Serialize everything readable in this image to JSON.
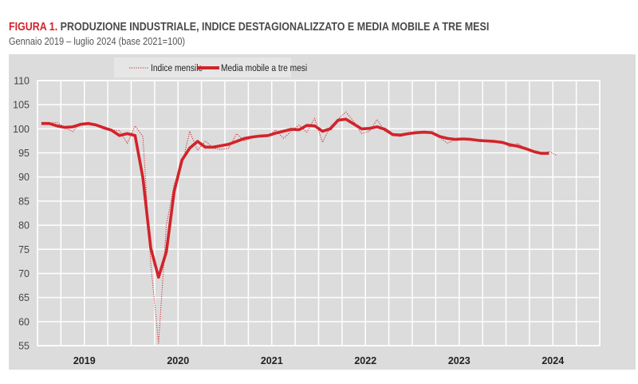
{
  "title_prefix": "FIGURA 1.",
  "title": "PRODUZIONE INDUSTRIALE, INDICE DESTAGIONALIZZATO E MEDIA MOBILE A TRE MESI",
  "subtitle": "Gennaio 2019 – luglio 2024 (base 2021=100)",
  "colors": {
    "series": "#d2232a",
    "panel": "#dcdcdc",
    "legend_bg": "#e6e6e6",
    "grid": "#ffffff"
  },
  "chart_data": {
    "type": "line",
    "title": "PRODUZIONE INDUSTRIALE, INDICE DESTAGIONALIZZATO E MEDIA MOBILE A TRE MESI",
    "subtitle": "Gennaio 2019 – luglio 2024 (base 2021=100)",
    "x_start": "2019-01",
    "x_frequency": "monthly",
    "x_tick_labels": [
      "2019",
      "2020",
      "2021",
      "2022",
      "2023",
      "2024"
    ],
    "ylim": [
      55,
      110
    ],
    "y_ticks": [
      55,
      60,
      65,
      70,
      75,
      80,
      85,
      90,
      95,
      100,
      105,
      110
    ],
    "grid": true,
    "legend_placement": "top-center",
    "series": [
      {
        "name": "Indice mensile",
        "style": "dotted",
        "values": [
          101.0,
          101.2,
          101.3,
          100.3,
          99.4,
          101.2,
          101.3,
          101.0,
          100.5,
          99.8,
          99.6,
          97.0,
          100.6,
          98.4,
          72.0,
          55.5,
          80.0,
          88.5,
          92.5,
          99.5,
          95.5,
          97.5,
          96.0,
          95.7,
          96.0,
          99.0,
          97.5,
          98.2,
          98.5,
          98.4,
          99.8,
          98.0,
          99.5,
          100.8,
          99.3,
          102.2,
          97.2,
          100.5,
          102.0,
          103.5,
          101.5,
          99.0,
          99.5,
          101.9,
          99.5,
          98.6,
          98.4,
          99.0,
          99.3,
          99.4,
          99.0,
          98.2,
          97.0,
          97.8,
          98.0,
          97.8,
          97.7,
          97.5,
          97.4,
          97.3,
          96.2,
          97.0,
          95.8,
          95.3,
          94.8,
          95.3,
          94.5
        ]
      },
      {
        "name": "Media mobile a tre mesi",
        "style": "solid",
        "values": [
          101.1,
          101.1,
          100.6,
          100.3,
          100.4,
          100.9,
          101.1,
          100.8,
          100.2,
          99.7,
          98.6,
          99.0,
          98.6,
          89.8,
          75.3,
          69.2,
          74.5,
          87.0,
          93.5,
          96.0,
          97.4,
          96.2,
          96.2,
          96.5,
          96.8,
          97.4,
          98.0,
          98.3,
          98.5,
          98.6,
          99.1,
          99.5,
          99.9,
          99.8,
          100.7,
          100.6,
          99.5,
          100.0,
          101.8,
          102.0,
          101.0,
          100.0,
          100.1,
          100.4,
          99.9,
          98.8,
          98.7,
          99.0,
          99.2,
          99.3,
          99.2,
          98.4,
          98.0,
          97.8,
          97.9,
          97.8,
          97.6,
          97.5,
          97.4,
          97.2,
          96.7,
          96.4,
          95.9,
          95.3,
          94.9,
          94.9
        ]
      }
    ]
  }
}
